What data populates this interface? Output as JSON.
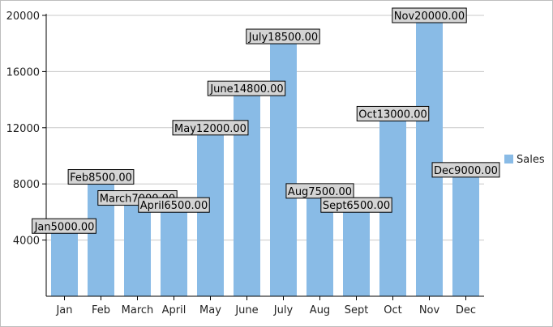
{
  "chart_data": {
    "type": "bar",
    "categories": [
      "Jan",
      "Feb",
      "March",
      "April",
      "May",
      "June",
      "July",
      "Aug",
      "Sept",
      "Oct",
      "Nov",
      "Dec"
    ],
    "series": [
      {
        "name": "Sales",
        "values": [
          5000,
          8500,
          7000,
          6500,
          12000,
          14800,
          18500,
          7500,
          6500,
          13000,
          20000,
          9000
        ],
        "data_labels": [
          "Jan5000.00",
          "Feb8500.00",
          "March7000.00",
          "April6500.00",
          "May12000.00",
          "June14800.00",
          "July18500.00",
          "Aug7500.00",
          "Sept6500.00",
          "Oct13000.00",
          "Nov20000.00",
          "Dec9000.00"
        ],
        "color": "#89bbe6"
      }
    ],
    "y_ticks": [
      "4000",
      "8000",
      "12000",
      "16000",
      "20000"
    ],
    "y_tick_values": [
      4000,
      8000,
      12000,
      16000,
      20000
    ],
    "ylim": [
      0,
      20000
    ],
    "grid": true,
    "legend": {
      "position": "right",
      "entries": [
        "Sales"
      ]
    },
    "title": "",
    "xlabel": "",
    "ylabel": ""
  }
}
